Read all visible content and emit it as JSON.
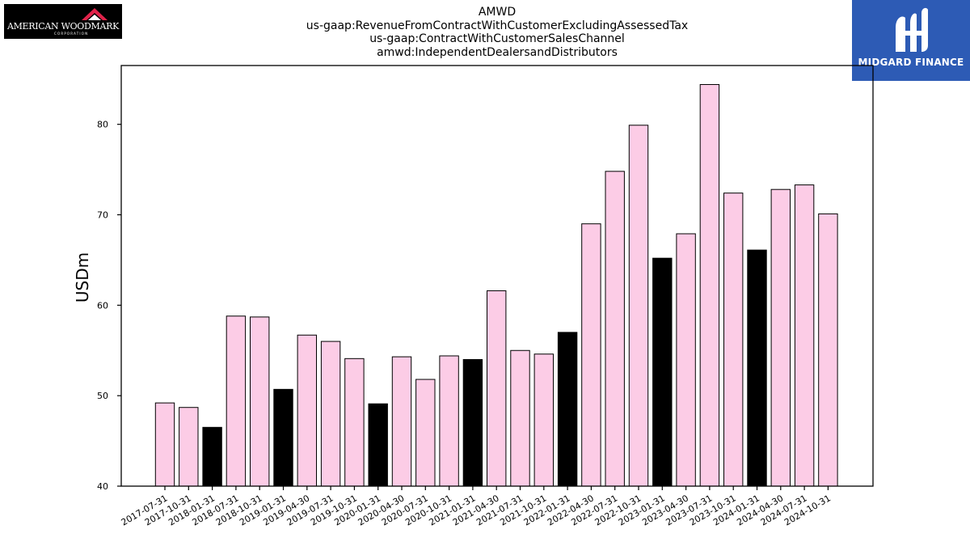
{
  "header": {
    "title_lines": [
      "AMWD",
      "us-gaap:RevenueFromContractWithCustomerExcludingAssessedTax",
      "us-gaap:ContractWithCustomerSalesChannel",
      "amwd:IndependentDealersandDistributors"
    ]
  },
  "logos": {
    "left": {
      "name": "AMERICAN WOODMARK",
      "sub": "CORPORATION"
    },
    "right": {
      "name": "MIDGARD FINANCE"
    }
  },
  "colors": {
    "bar_default": "#fccce6",
    "bar_highlight": "#000000",
    "bar_edge": "#000000",
    "right_logo_bg": "#2d5bb5",
    "left_logo_mark": "#e0234a"
  },
  "chart_data": {
    "type": "bar",
    "title": "AMWD us-gaap:RevenueFromContractWithCustomerExcludingAssessedTax us-gaap:ContractWithCustomerSalesChannel amwd:IndependentDealersandDistributors",
    "xlabel": "",
    "ylabel": "USDm",
    "ylim": [
      40,
      86.5
    ],
    "yticks": [
      40,
      50,
      60,
      70,
      80
    ],
    "grid": false,
    "categories": [
      "2017-07-31",
      "2017-10-31",
      "2018-01-31",
      "2018-07-31",
      "2018-10-31",
      "2019-01-31",
      "2019-04-30",
      "2019-07-31",
      "2019-10-31",
      "2020-01-31",
      "2020-04-30",
      "2020-07-31",
      "2020-10-31",
      "2021-01-31",
      "2021-04-30",
      "2021-07-31",
      "2021-10-31",
      "2022-01-31",
      "2022-04-30",
      "2022-07-31",
      "2022-10-31",
      "2023-01-31",
      "2023-04-30",
      "2023-07-31",
      "2023-10-31",
      "2024-01-31",
      "2024-04-30",
      "2024-07-31",
      "2024-10-31"
    ],
    "values": [
      49.2,
      48.7,
      46.5,
      58.8,
      58.7,
      50.7,
      56.7,
      56.0,
      54.1,
      49.1,
      54.3,
      51.8,
      54.4,
      54.0,
      61.6,
      55.0,
      54.6,
      57.0,
      69.0,
      74.8,
      79.9,
      65.2,
      67.9,
      84.4,
      72.4,
      66.1,
      72.8,
      73.3,
      70.1
    ],
    "highlighted": [
      false,
      false,
      true,
      false,
      false,
      true,
      false,
      false,
      false,
      true,
      false,
      false,
      false,
      true,
      false,
      false,
      false,
      true,
      false,
      false,
      false,
      true,
      false,
      false,
      false,
      true,
      false,
      false,
      false
    ]
  }
}
